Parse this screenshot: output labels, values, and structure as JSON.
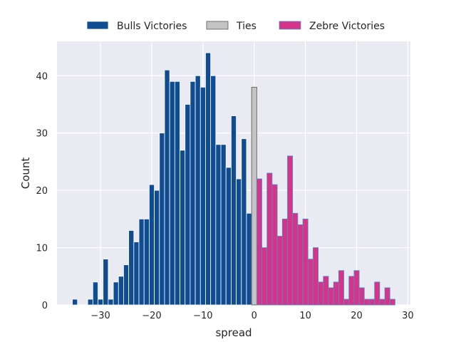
{
  "chart_data": {
    "type": "bar",
    "xlabel": "spread",
    "ylabel": "Count",
    "xlim": [
      -38.5,
      30.5
    ],
    "ylim": [
      0,
      46
    ],
    "xticks": [
      -30,
      -20,
      -10,
      0,
      10,
      20,
      30
    ],
    "yticks": [
      0,
      10,
      20,
      30,
      40
    ],
    "x_tick_labels": [
      "−30",
      "−20",
      "−10",
      "0",
      "10",
      "20",
      "30"
    ],
    "y_tick_labels": [
      "0",
      "10",
      "20",
      "30",
      "40"
    ],
    "grid": true,
    "legend_position": "top-center",
    "series": [
      {
        "name": "Bulls Victories",
        "color": "#0f4c92",
        "edge_color": "#ffffff",
        "x": [
          -35,
          -34,
          -33,
          -32,
          -31,
          -30,
          -29,
          -28,
          -27,
          -26,
          -25,
          -24,
          -23,
          -22,
          -21,
          -20,
          -19,
          -18,
          -17,
          -16,
          -15,
          -14,
          -13,
          -12,
          -11,
          -10,
          -9,
          -8,
          -7,
          -6,
          -5,
          -4,
          -3,
          -2,
          -1
        ],
        "values": [
          1,
          0,
          0,
          1,
          4,
          1,
          8,
          1,
          4,
          5,
          7,
          13,
          11,
          15,
          15,
          21,
          20,
          30,
          41,
          39,
          39,
          27,
          35,
          39,
          40,
          38,
          44,
          40,
          28,
          28,
          24,
          33,
          22,
          29,
          16
        ]
      },
      {
        "name": "Ties",
        "color": "#c4c4c4",
        "edge_color": "#555555",
        "x": [
          0
        ],
        "values": [
          38
        ]
      },
      {
        "name": "Zebre Victories",
        "color": "#d6338a",
        "edge_color": "#4a90c8",
        "x": [
          1,
          2,
          3,
          4,
          5,
          6,
          7,
          8,
          9,
          10,
          11,
          12,
          13,
          14,
          15,
          16,
          17,
          18,
          19,
          20,
          21,
          22,
          23,
          24,
          25,
          26,
          27
        ],
        "values": [
          22,
          10,
          23,
          21,
          12,
          15,
          26,
          16,
          14,
          15,
          8,
          10,
          4,
          5,
          3,
          4,
          6,
          1,
          5,
          6,
          3,
          1,
          1,
          4,
          1,
          3,
          1
        ]
      }
    ]
  }
}
